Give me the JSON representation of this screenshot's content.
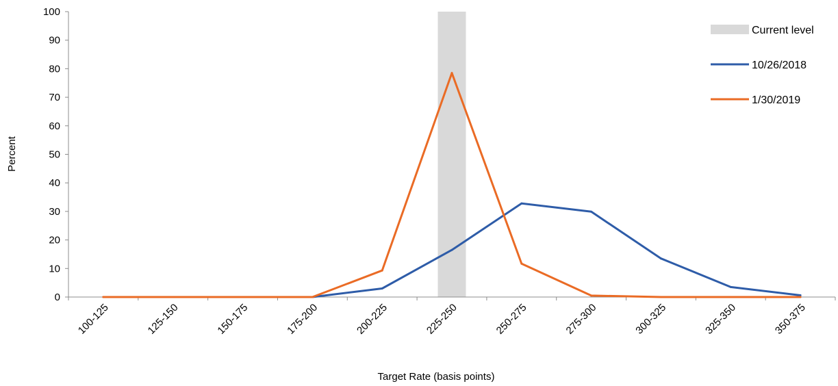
{
  "chart_data": {
    "type": "line",
    "categories": [
      "100-125",
      "125-150",
      "150-175",
      "175-200",
      "200-225",
      "225-250",
      "250-275",
      "275-300",
      "300-325",
      "325-350",
      "350-375"
    ],
    "series": [
      {
        "name": "10/26/2018",
        "color": "#2E5CA8",
        "values": [
          0,
          0,
          0,
          0,
          3,
          16.5,
          32.8,
          29.9,
          13.5,
          3.5,
          0.6
        ]
      },
      {
        "name": "1/30/2019",
        "color": "#EA6B25",
        "values": [
          0,
          0,
          0,
          0,
          9.3,
          78.5,
          11.7,
          0.5,
          0,
          0,
          0
        ]
      }
    ],
    "highlight": {
      "name": "Current level",
      "category": "225-250",
      "color": "#D9D9D9"
    },
    "xlabel": "Target Rate (basis points)",
    "ylabel": "Percent",
    "ylim": [
      0,
      100
    ],
    "yticks": [
      0,
      10,
      20,
      30,
      40,
      50,
      60,
      70,
      80,
      90,
      100
    ],
    "grid": false,
    "legend_position": "top-right"
  }
}
